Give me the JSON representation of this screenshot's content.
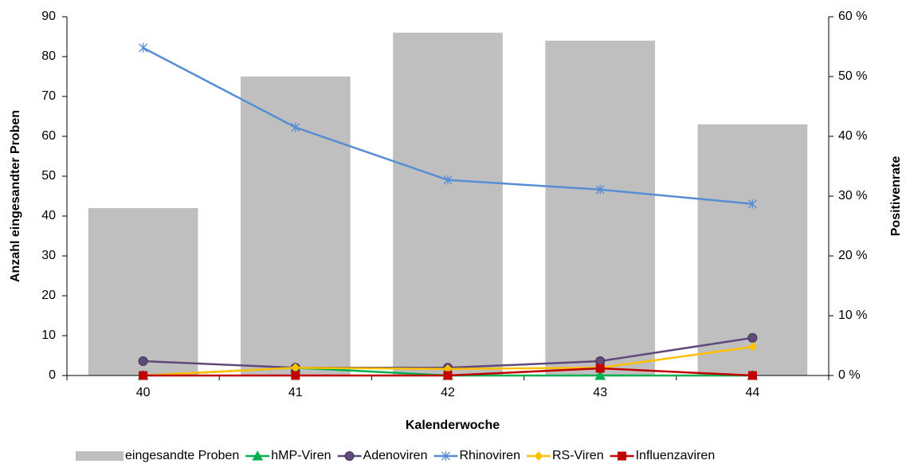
{
  "chart_data": {
    "type": "bar-line",
    "x_label": "Kalenderwoche",
    "y_label": "Anzahl eingesandter Proben",
    "y2_label": "Positivenrate",
    "categories": [
      "40",
      "41",
      "42",
      "43",
      "44"
    ],
    "ylim": [
      0,
      90
    ],
    "yticks": [
      0,
      10,
      20,
      30,
      40,
      50,
      60,
      70,
      80,
      90
    ],
    "y2lim": [
      0,
      60
    ],
    "y2ticks": [
      {
        "value": 0,
        "label": "0 %"
      },
      {
        "value": 10,
        "label": "10 %"
      },
      {
        "value": 20,
        "label": "20 %"
      },
      {
        "value": 30,
        "label": "30 %"
      },
      {
        "value": 40,
        "label": "40 %"
      },
      {
        "value": 50,
        "label": "50 %"
      },
      {
        "value": 60,
        "label": "60 %"
      }
    ],
    "series": [
      {
        "name": "eingesandte Proben",
        "type": "bar",
        "color": "#bfbfbf",
        "values": [
          42,
          75,
          86,
          84,
          63
        ]
      },
      {
        "name": "hMP-Viren",
        "type": "line",
        "axis": "y2",
        "marker": "triangle",
        "color": "#00b050",
        "values": [
          0,
          1.3,
          0,
          0,
          0
        ]
      },
      {
        "name": "Adenoviren",
        "type": "line",
        "axis": "y2",
        "marker": "circle",
        "color": "#604a7b",
        "values": [
          2.4,
          1.3,
          1.3,
          2.4,
          6.3
        ]
      },
      {
        "name": "Rhinoviren",
        "type": "line",
        "axis": "y2",
        "marker": "star",
        "color": "#558ed5",
        "values": [
          54.8,
          41.5,
          32.7,
          31.1,
          28.7
        ]
      },
      {
        "name": "RS-Viren",
        "type": "line",
        "axis": "y2",
        "marker": "diamond",
        "color": "#ffc000",
        "values": [
          0,
          1.3,
          1.1,
          1.3,
          4.8
        ]
      },
      {
        "name": "Influenzaviren",
        "type": "line",
        "axis": "y2",
        "marker": "square",
        "color": "#c00000",
        "values": [
          0,
          0,
          0,
          1.2,
          0
        ]
      }
    ]
  }
}
